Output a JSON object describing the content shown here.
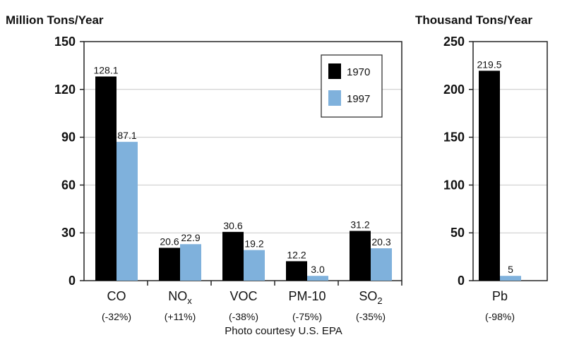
{
  "credit": "Photo courtesy U.S. EPA",
  "chart_data": [
    {
      "type": "bar",
      "unit_label": "Million Tons/Year",
      "ylim": [
        0,
        150
      ],
      "yticks": [
        0,
        30,
        60,
        90,
        120,
        150
      ],
      "grid": true,
      "legend_position": "top-right",
      "categories": [
        {
          "label": "CO",
          "sub": "",
          "change": "(-32%)"
        },
        {
          "label": "NO",
          "sub": "x",
          "change": "(+11%)"
        },
        {
          "label": "VOC",
          "sub": "",
          "change": "(-38%)"
        },
        {
          "label": "PM-10",
          "sub": "",
          "change": "(-75%)"
        },
        {
          "label": "SO",
          "sub": "2",
          "change": "(-35%)"
        }
      ],
      "series": [
        {
          "name": "1970",
          "color": "#000000",
          "values": [
            128.1,
            20.6,
            30.6,
            12.2,
            31.2
          ],
          "labels": [
            "128.1",
            "20.6",
            "30.6",
            "12.2",
            "31.2"
          ]
        },
        {
          "name": "1997",
          "color": "#7fb1dc",
          "values": [
            87.1,
            22.9,
            19.2,
            3.0,
            20.3
          ],
          "labels": [
            "87.1",
            "22.9",
            "19.2",
            "3.0",
            "20.3"
          ]
        }
      ]
    },
    {
      "type": "bar",
      "unit_label": "Thousand Tons/Year",
      "ylim": [
        0,
        250
      ],
      "yticks": [
        0,
        50,
        100,
        150,
        200,
        250
      ],
      "grid": true,
      "categories": [
        {
          "label": "Pb",
          "sub": "",
          "change": "(-98%)"
        }
      ],
      "series": [
        {
          "name": "1970",
          "color": "#000000",
          "values": [
            219.5
          ],
          "labels": [
            "219.5"
          ]
        },
        {
          "name": "1997",
          "color": "#7fb1dc",
          "values": [
            5
          ],
          "labels": [
            "5"
          ]
        }
      ]
    }
  ]
}
